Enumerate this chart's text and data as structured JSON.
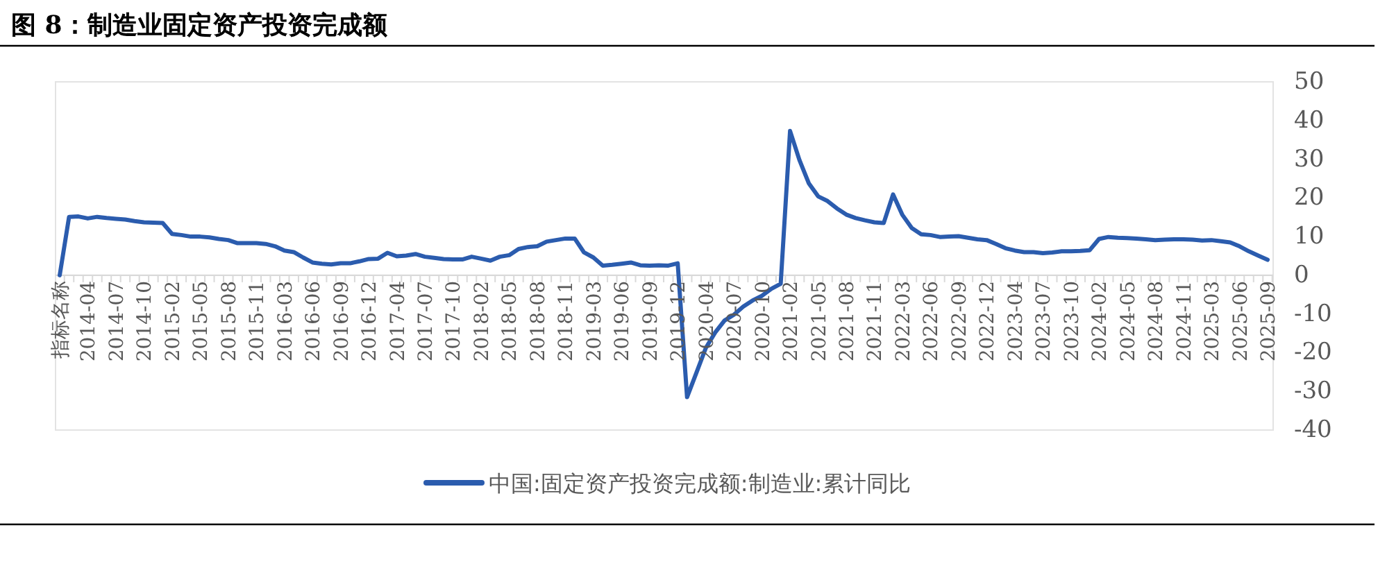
{
  "chart_data": {
    "type": "line",
    "title": "图 8：制造业固定资产投资完成额",
    "categories": [
      "指标名称",
      null,
      null,
      "2014-04",
      null,
      null,
      "2014-07",
      null,
      null,
      "2014-10",
      null,
      null,
      "2015-02",
      null,
      null,
      "2015-05",
      null,
      null,
      "2015-08",
      null,
      null,
      "2015-11",
      null,
      null,
      "2016-03",
      null,
      null,
      "2016-06",
      null,
      null,
      "2016-09",
      null,
      null,
      "2016-12",
      null,
      null,
      "2017-04",
      null,
      null,
      "2017-07",
      null,
      null,
      "2017-10",
      null,
      null,
      "2018-02",
      null,
      null,
      "2018-05",
      null,
      null,
      "2018-08",
      null,
      null,
      "2018-11",
      null,
      null,
      "2019-03",
      null,
      null,
      "2019-06",
      null,
      null,
      "2019-09",
      null,
      null,
      "2019-12",
      null,
      null,
      "2020-04",
      null,
      null,
      "2020-07",
      null,
      null,
      "2020-10",
      null,
      null,
      "2021-02",
      null,
      null,
      "2021-05",
      null,
      null,
      "2021-08",
      null,
      null,
      "2021-11",
      null,
      null,
      "2022-03",
      null,
      null,
      "2022-06",
      null,
      null,
      "2022-09",
      null,
      null,
      "2022-12",
      null,
      null,
      "2023-04",
      null,
      null,
      "2023-07",
      null,
      null,
      "2023-10",
      null,
      null,
      "2024-02",
      null,
      null,
      "2024-05",
      null,
      null,
      "2024-08",
      null,
      null,
      "2024-11",
      null,
      null,
      "2025-03",
      null,
      null,
      "2025-06",
      null,
      null,
      "2025-09"
    ],
    "series": [
      {
        "name": "中国:固定资产投资完成额:制造业:累计同比",
        "color": "#2b5cae",
        "values": [
          0,
          15.1,
          15.2,
          14.7,
          15.1,
          14.8,
          14.6,
          14.4,
          14.0,
          13.7,
          13.6,
          13.5,
          10.7,
          10.4,
          10.0,
          10.0,
          9.8,
          9.4,
          9.1,
          8.3,
          8.3,
          8.3,
          8.1,
          7.5,
          6.4,
          6.0,
          4.6,
          3.3,
          3.0,
          2.8,
          3.1,
          3.1,
          3.6,
          4.2,
          4.3,
          5.8,
          4.9,
          5.1,
          5.5,
          4.8,
          4.5,
          4.2,
          4.1,
          4.1,
          4.8,
          4.3,
          3.8,
          4.8,
          5.2,
          6.8,
          7.3,
          7.5,
          8.7,
          9.1,
          9.5,
          9.5,
          5.9,
          4.6,
          2.5,
          2.7,
          3.0,
          3.3,
          2.6,
          2.5,
          2.6,
          2.5,
          3.1,
          -31.5,
          -25.2,
          -18.8,
          -14.8,
          -11.7,
          -10.2,
          -8.1,
          -6.5,
          -5.3,
          -3.5,
          -2.2,
          37.3,
          29.8,
          23.8,
          20.4,
          19.2,
          17.3,
          15.7,
          14.8,
          14.2,
          13.7,
          13.5,
          20.9,
          15.6,
          12.2,
          10.6,
          10.4,
          9.9,
          10.0,
          10.1,
          9.7,
          9.3,
          9.1,
          8.1,
          7.0,
          6.4,
          6.0,
          6.0,
          5.7,
          5.9,
          6.2,
          6.2,
          6.3,
          6.5,
          9.4,
          9.9,
          9.7,
          9.6,
          9.5,
          9.3,
          9.1,
          9.2,
          9.3,
          9.3,
          9.2,
          9.0,
          9.1,
          8.8,
          8.5,
          7.5,
          6.2,
          5.1,
          4.0
        ]
      }
    ],
    "ylim": [
      -40,
      50
    ],
    "yticks": [
      -40,
      -30,
      -20,
      -10,
      0,
      10,
      20,
      30,
      40,
      50
    ],
    "legend": "bottom"
  }
}
